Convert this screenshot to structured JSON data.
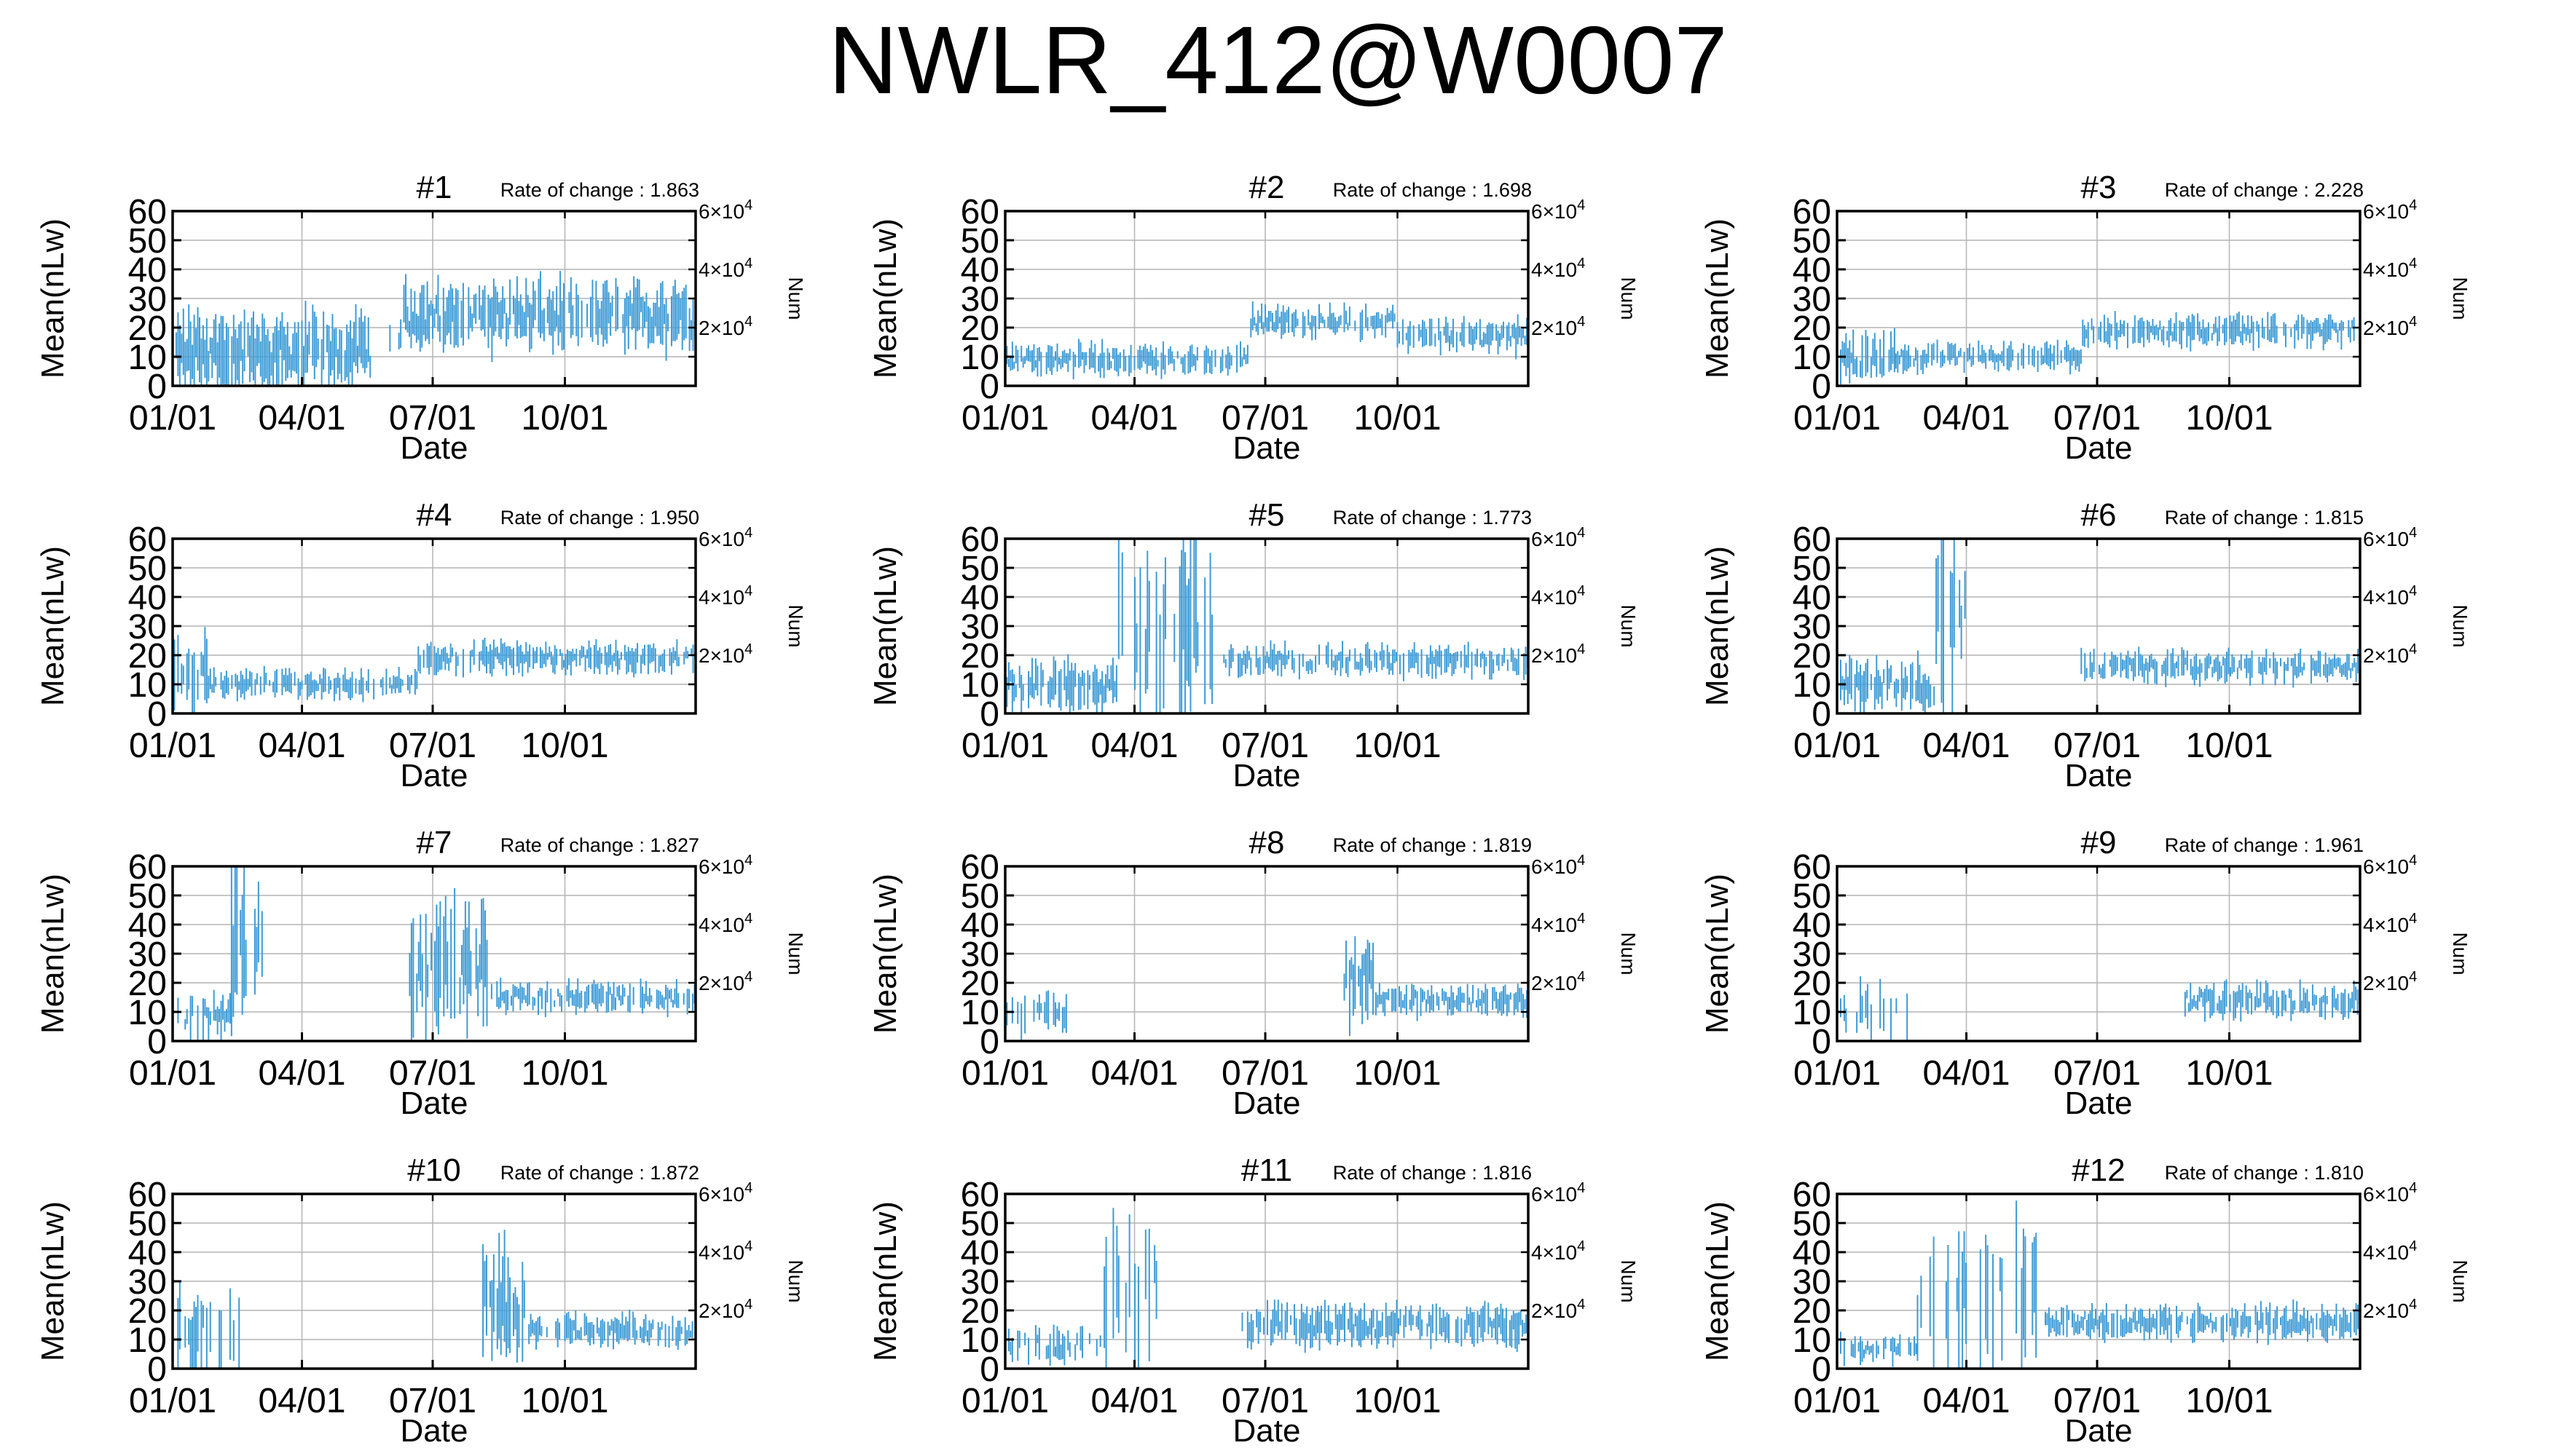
{
  "title": "NWLR_412@W0007",
  "colors": {
    "series": "#3d9bd6",
    "axes": "#000000",
    "grid": "#b4b4b4",
    "background": "#ffffff"
  },
  "chart_data": {
    "type": "line",
    "note": "12 small-multiple panels; each vertical bar spans a daily range of Mean(nLw) values",
    "shared": {
      "xlabel": "Date",
      "ylabel": "Mean(nLw)",
      "y2label": "Num",
      "xticks": [
        "01/01",
        "04/01",
        "07/01",
        "10/01"
      ],
      "x_range": [
        "01/01",
        "12/31"
      ],
      "ylim": [
        0,
        60
      ],
      "yticks": [
        0,
        10,
        20,
        30,
        40,
        50,
        60
      ],
      "y2ticks": [
        {
          "base": "2×10",
          "exp": "4"
        },
        {
          "base": "4×10",
          "exp": "4"
        },
        {
          "base": "6×10",
          "exp": "4"
        }
      ],
      "rate_prefix": "Rate of change : ",
      "grid": true
    },
    "panels": [
      {
        "label": "#1",
        "rate_value": "1.863",
        "segments": [
          {
            "from": "01/01",
            "to": "05/20",
            "mean": 12,
            "spread": 22,
            "density": 0.9
          },
          {
            "from": "05/21",
            "to": "06/10",
            "mean": 14,
            "spread": 16,
            "density": 0.35
          },
          {
            "from": "06/11",
            "to": "12/31",
            "mean": 24,
            "spread": 20,
            "density": 0.85
          }
        ]
      },
      {
        "label": "#2",
        "rate_value": "1.698",
        "segments": [
          {
            "from": "01/01",
            "to": "06/20",
            "mean": 9,
            "spread": 9,
            "density": 0.8
          },
          {
            "from": "06/21",
            "to": "09/30",
            "mean": 22,
            "spread": 9,
            "density": 0.8
          },
          {
            "from": "10/01",
            "to": "12/31",
            "mean": 17,
            "spread": 10,
            "density": 0.8
          }
        ]
      },
      {
        "label": "#3",
        "rate_value": "2.228",
        "segments": [
          {
            "from": "01/01",
            "to": "02/10",
            "mean": 9,
            "spread": 14,
            "density": 0.7
          },
          {
            "from": "02/11",
            "to": "06/20",
            "mean": 10,
            "spread": 8,
            "density": 0.8
          },
          {
            "from": "06/21",
            "to": "12/31",
            "mean": 19,
            "spread": 9,
            "density": 0.8
          }
        ]
      },
      {
        "label": "#4",
        "rate_value": "1.950",
        "segments": [
          {
            "from": "01/01",
            "to": "01/25",
            "mean": 12,
            "spread": 22,
            "density": 0.7
          },
          {
            "from": "01/26",
            "to": "06/20",
            "mean": 10,
            "spread": 8,
            "density": 0.8
          },
          {
            "from": "06/21",
            "to": "12/31",
            "mean": 19,
            "spread": 9,
            "density": 0.8
          }
        ]
      },
      {
        "label": "#5",
        "rate_value": "1.773",
        "segments": [
          {
            "from": "01/01",
            "to": "03/20",
            "mean": 10,
            "spread": 14,
            "density": 0.75
          },
          {
            "from": "03/21",
            "to": "05/25",
            "mean": 30,
            "spread": 60,
            "density": 0.6
          },
          {
            "from": "06/01",
            "to": "12/31",
            "mean": 18,
            "spread": 9,
            "density": 0.8
          }
        ]
      },
      {
        "label": "#6",
        "rate_value": "1.815",
        "segments": [
          {
            "from": "01/01",
            "to": "03/10",
            "mean": 10,
            "spread": 16,
            "density": 0.75
          },
          {
            "from": "03/11",
            "to": "03/31",
            "mean": 30,
            "spread": 60,
            "density": 0.7
          },
          {
            "from": "06/20",
            "to": "12/31",
            "mean": 16,
            "spread": 9,
            "density": 0.8
          }
        ]
      },
      {
        "label": "#7",
        "rate_value": "1.827",
        "segments": [
          {
            "from": "01/01",
            "to": "02/10",
            "mean": 9,
            "spread": 14,
            "density": 0.7
          },
          {
            "from": "02/11",
            "to": "03/05",
            "mean": 30,
            "spread": 55,
            "density": 0.6
          },
          {
            "from": "06/15",
            "to": "08/10",
            "mean": 25,
            "spread": 40,
            "density": 0.7
          },
          {
            "from": "08/11",
            "to": "12/31",
            "mean": 15,
            "spread": 9,
            "density": 0.8
          }
        ]
      },
      {
        "label": "#8",
        "rate_value": "1.819",
        "segments": [
          {
            "from": "01/01",
            "to": "02/15",
            "mean": 9,
            "spread": 12,
            "density": 0.6
          },
          {
            "from": "08/25",
            "to": "09/15",
            "mean": 20,
            "spread": 28,
            "density": 0.7
          },
          {
            "from": "09/16",
            "to": "12/31",
            "mean": 14,
            "spread": 9,
            "density": 0.85
          }
        ]
      },
      {
        "label": "#9",
        "rate_value": "1.961",
        "segments": [
          {
            "from": "01/01",
            "to": "02/20",
            "mean": 10,
            "spread": 20,
            "density": 0.55
          },
          {
            "from": "08/30",
            "to": "12/31",
            "mean": 14,
            "spread": 10,
            "density": 0.85
          }
        ]
      },
      {
        "label": "#10",
        "rate_value": "1.872",
        "segments": [
          {
            "from": "01/01",
            "to": "02/25",
            "mean": 12,
            "spread": 26,
            "density": 0.45
          },
          {
            "from": "08/05",
            "to": "09/05",
            "mean": 22,
            "spread": 35,
            "density": 0.7
          },
          {
            "from": "09/06",
            "to": "12/31",
            "mean": 13,
            "spread": 9,
            "density": 0.85
          }
        ]
      },
      {
        "label": "#11",
        "rate_value": "1.816",
        "segments": [
          {
            "from": "01/01",
            "to": "03/10",
            "mean": 8,
            "spread": 10,
            "density": 0.4
          },
          {
            "from": "03/11",
            "to": "04/20",
            "mean": 25,
            "spread": 50,
            "density": 0.25
          },
          {
            "from": "06/15",
            "to": "12/31",
            "mean": 15,
            "spread": 12,
            "density": 0.85
          }
        ]
      },
      {
        "label": "#12",
        "rate_value": "1.810",
        "segments": [
          {
            "from": "01/01",
            "to": "02/25",
            "mean": 7,
            "spread": 9,
            "density": 0.45
          },
          {
            "from": "02/26",
            "to": "05/25",
            "mean": 25,
            "spread": 45,
            "density": 0.3
          },
          {
            "from": "05/26",
            "to": "12/31",
            "mean": 16,
            "spread": 10,
            "density": 0.85
          }
        ]
      }
    ]
  }
}
